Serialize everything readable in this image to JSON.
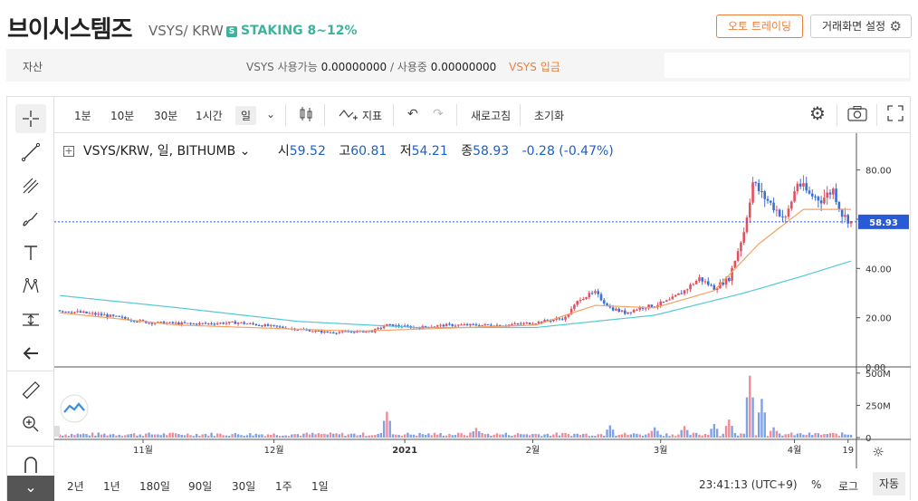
{
  "header": {
    "coin_name_kr": "브이시스템즈",
    "coin_symbol": "VSYS/ KRW",
    "staking_badge": "S",
    "staking_label": "STAKING 8~12%",
    "auto_trading_button": "오토 트레이딩",
    "screen_settings_button": "거래화면 설정"
  },
  "asset_bar": {
    "label": "자산",
    "available_label": "VSYS 사용가능",
    "available_value": "0.00000000",
    "in_use_label": "/ 사용중",
    "in_use_value": "0.00000000",
    "deposit_link": "VSYS 입금"
  },
  "toolbar": {
    "timeframes": [
      "1분",
      "10분",
      "30분",
      "1시간",
      "일"
    ],
    "active_timeframe": "일",
    "indicator_label": "지표",
    "refresh_label": "새로고침",
    "reset_label": "초기화"
  },
  "legend": {
    "symbol": "VSYS/KRW, 일, BITHUMB",
    "open_label": "시",
    "open_value": "59.52",
    "high_label": "고",
    "high_value": "60.81",
    "low_label": "저",
    "low_value": "54.21",
    "close_label": "종",
    "close_value": "58.93",
    "change": "-0.28 (-0.47%)"
  },
  "bottom_bar": {
    "ranges": [
      "2년",
      "1년",
      "180일",
      "90일",
      "30일",
      "1주",
      "1일"
    ],
    "clock": "23:41:13 (UTC+9)",
    "percent_option": "%",
    "log_option": "로그",
    "auto_option": "자동"
  },
  "colors": {
    "up": "#e5505f",
    "down": "#3b6fd8",
    "ma_short": "#f4a261",
    "ma_long": "#55c8d6",
    "accent": "#f07d3a",
    "staking": "#3db39e"
  },
  "chart_data": {
    "type": "candlestick",
    "x_tick_labels": [
      "11월",
      "12월",
      "2021",
      "2월",
      "3월",
      "4월",
      "19"
    ],
    "y_tick_labels": [
      "80.00",
      "60.00",
      "40.00",
      "20.00",
      "0.00"
    ],
    "ylim": [
      0,
      92
    ],
    "current_price_label": "58.93",
    "volume_tick_labels": [
      "500M",
      "250M",
      "0"
    ],
    "volume_ylim": [
      0,
      520
    ],
    "series": {
      "price_keypoints": [
        [
          0,
          23
        ],
        [
          15,
          21
        ],
        [
          30,
          18
        ],
        [
          45,
          17.5
        ],
        [
          60,
          18
        ],
        [
          75,
          16
        ],
        [
          90,
          14
        ],
        [
          105,
          14.5
        ],
        [
          110,
          17
        ],
        [
          120,
          16
        ],
        [
          130,
          17
        ],
        [
          140,
          17
        ],
        [
          150,
          17
        ],
        [
          160,
          18
        ],
        [
          170,
          20
        ],
        [
          175,
          28
        ],
        [
          180,
          30
        ],
        [
          185,
          24
        ],
        [
          190,
          22
        ],
        [
          195,
          24
        ],
        [
          200,
          25
        ],
        [
          205,
          27
        ],
        [
          210,
          31
        ],
        [
          215,
          36
        ],
        [
          220,
          32
        ],
        [
          225,
          36
        ],
        [
          230,
          55
        ],
        [
          233,
          75
        ],
        [
          236,
          70
        ],
        [
          240,
          65
        ],
        [
          244,
          60
        ],
        [
          248,
          75
        ],
        [
          252,
          70
        ],
        [
          256,
          68
        ],
        [
          260,
          72
        ],
        [
          263,
          62
        ],
        [
          266,
          58.93
        ]
      ],
      "ma_short_keypoints": [
        [
          0,
          22
        ],
        [
          40,
          17
        ],
        [
          100,
          14.5
        ],
        [
          160,
          17
        ],
        [
          180,
          25
        ],
        [
          200,
          24
        ],
        [
          220,
          31
        ],
        [
          235,
          50
        ],
        [
          250,
          64
        ],
        [
          266,
          64
        ]
      ],
      "ma_long_keypoints": [
        [
          0,
          29
        ],
        [
          40,
          24
        ],
        [
          80,
          18.5
        ],
        [
          120,
          16
        ],
        [
          160,
          16
        ],
        [
          200,
          21
        ],
        [
          230,
          30
        ],
        [
          250,
          37
        ],
        [
          266,
          43
        ]
      ],
      "volume_spikes": [
        [
          110,
          200
        ],
        [
          140,
          75
        ],
        [
          185,
          95
        ],
        [
          200,
          80
        ],
        [
          210,
          90
        ],
        [
          220,
          105
        ],
        [
          225,
          140
        ],
        [
          232,
          480
        ],
        [
          236,
          300
        ],
        [
          240,
          80
        ]
      ]
    }
  }
}
